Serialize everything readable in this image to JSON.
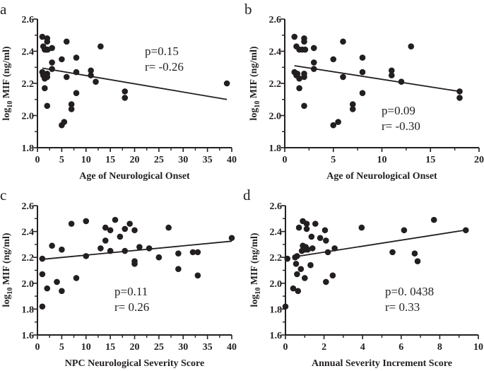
{
  "chart_data": [
    {
      "type": "scatter",
      "panel_label": "a",
      "xlabel": "Age of Neurological Onset",
      "ylabel_prefix": "log",
      "ylabel_sub": "10",
      "ylabel_suffix": " MIF (ng/ml)",
      "xlim": [
        0,
        40
      ],
      "ylim": [
        1.8,
        2.6
      ],
      "xticks": [
        0,
        5,
        10,
        15,
        20,
        25,
        30,
        35,
        40
      ],
      "yticks": [
        1.8,
        2.0,
        2.2,
        2.4,
        2.6
      ],
      "annotation": [
        "p=0.15",
        "r= -0.26"
      ],
      "points": [
        [
          1,
          2.49
        ],
        [
          1.2,
          2.43
        ],
        [
          1.5,
          2.41
        ],
        [
          1.8,
          2.41
        ],
        [
          2,
          2.48
        ],
        [
          2,
          2.46
        ],
        [
          2.1,
          2.41
        ],
        [
          3,
          2.42
        ],
        [
          1,
          2.27
        ],
        [
          1.2,
          2.25
        ],
        [
          1.3,
          2.26
        ],
        [
          1.5,
          2.23
        ],
        [
          2,
          2.26
        ],
        [
          2,
          2.24
        ],
        [
          1.5,
          2.17
        ],
        [
          2,
          2.06
        ],
        [
          3,
          2.33
        ],
        [
          3,
          2.29
        ],
        [
          5,
          2.35
        ],
        [
          6,
          2.46
        ],
        [
          6,
          2.24
        ],
        [
          5,
          1.94
        ],
        [
          5.5,
          1.96
        ],
        [
          7,
          2.07
        ],
        [
          7,
          2.04
        ],
        [
          8,
          2.36
        ],
        [
          8,
          2.27
        ],
        [
          8,
          2.14
        ],
        [
          11,
          2.28
        ],
        [
          11,
          2.25
        ],
        [
          12,
          2.21
        ],
        [
          13,
          2.43
        ],
        [
          18,
          2.15
        ],
        [
          18,
          2.11
        ],
        [
          39,
          2.2
        ]
      ],
      "fit_line": [
        [
          1,
          2.295
        ],
        [
          39,
          2.1
        ]
      ],
      "color": "#231f20"
    },
    {
      "type": "scatter",
      "panel_label": "b",
      "xlabel": "Age of Neurological Onset",
      "ylabel_prefix": "log",
      "ylabel_sub": "10",
      "ylabel_suffix": " MIF (ng/ml)",
      "xlim": [
        0,
        20
      ],
      "ylim": [
        1.8,
        2.6
      ],
      "xticks": [
        0,
        5,
        10,
        15,
        20
      ],
      "yticks": [
        1.8,
        2.0,
        2.2,
        2.4,
        2.6
      ],
      "annotation": [
        "p=0.09",
        "r= -0.30"
      ],
      "points": [
        [
          1,
          2.49
        ],
        [
          1.2,
          2.43
        ],
        [
          1.5,
          2.41
        ],
        [
          1.8,
          2.41
        ],
        [
          2,
          2.48
        ],
        [
          2,
          2.46
        ],
        [
          2.1,
          2.41
        ],
        [
          3,
          2.42
        ],
        [
          1,
          2.27
        ],
        [
          1.2,
          2.25
        ],
        [
          1.3,
          2.26
        ],
        [
          1.5,
          2.23
        ],
        [
          2,
          2.26
        ],
        [
          2,
          2.24
        ],
        [
          1.5,
          2.17
        ],
        [
          2,
          2.06
        ],
        [
          3,
          2.33
        ],
        [
          3,
          2.29
        ],
        [
          5,
          2.35
        ],
        [
          6,
          2.46
        ],
        [
          6,
          2.24
        ],
        [
          5,
          1.94
        ],
        [
          5.5,
          1.96
        ],
        [
          7,
          2.07
        ],
        [
          7,
          2.04
        ],
        [
          8,
          2.36
        ],
        [
          8,
          2.27
        ],
        [
          8,
          2.14
        ],
        [
          11,
          2.28
        ],
        [
          11,
          2.25
        ],
        [
          12,
          2.21
        ],
        [
          13,
          2.43
        ],
        [
          18,
          2.15
        ],
        [
          18,
          2.11
        ]
      ],
      "fit_line": [
        [
          1,
          2.31
        ],
        [
          18,
          2.15
        ]
      ],
      "color": "#231f20"
    },
    {
      "type": "scatter",
      "panel_label": "c",
      "xlabel": "NPC Neurological Severity Score",
      "ylabel_prefix": "log",
      "ylabel_sub": "10",
      "ylabel_suffix": " MIF (ng/ml)",
      "xlim": [
        0,
        40
      ],
      "ylim": [
        1.6,
        2.6
      ],
      "xticks": [
        0,
        5,
        10,
        15,
        20,
        25,
        30,
        35,
        40
      ],
      "yticks": [
        1.6,
        1.8,
        2.0,
        2.2,
        2.4,
        2.6
      ],
      "annotation": [
        "p=0.11",
        "r= 0.26"
      ],
      "points": [
        [
          1,
          2.19
        ],
        [
          1,
          2.07
        ],
        [
          1,
          1.82
        ],
        [
          2,
          1.96
        ],
        [
          3,
          2.29
        ],
        [
          4,
          2.01
        ],
        [
          5,
          2.26
        ],
        [
          5,
          1.94
        ],
        [
          7,
          2.46
        ],
        [
          8,
          2.04
        ],
        [
          10,
          2.48
        ],
        [
          10,
          2.21
        ],
        [
          13,
          2.27
        ],
        [
          14,
          2.43
        ],
        [
          14,
          2.33
        ],
        [
          15,
          2.41
        ],
        [
          15,
          2.25
        ],
        [
          16,
          2.49
        ],
        [
          17,
          2.36
        ],
        [
          18,
          2.42
        ],
        [
          18,
          2.25
        ],
        [
          19,
          2.46
        ],
        [
          20,
          2.41
        ],
        [
          20,
          2.17
        ],
        [
          20,
          2.15
        ],
        [
          21,
          2.28
        ],
        [
          23,
          2.27
        ],
        [
          25,
          2.2
        ],
        [
          27,
          2.43
        ],
        [
          29,
          2.23
        ],
        [
          29,
          2.11
        ],
        [
          32,
          2.24
        ],
        [
          33,
          2.24
        ],
        [
          33,
          2.06
        ],
        [
          40,
          2.35
        ]
      ],
      "fit_line": [
        [
          1,
          2.185
        ],
        [
          40,
          2.325
        ]
      ],
      "color": "#231f20"
    },
    {
      "type": "scatter",
      "panel_label": "d",
      "xlabel": "Annual Severity Increment Score",
      "ylabel_prefix": "log",
      "ylabel_sub": "10",
      "ylabel_suffix": " MIF (ng/ml)",
      "xlim": [
        0,
        10
      ],
      "ylim": [
        1.6,
        2.6
      ],
      "xticks": [
        0,
        2,
        4,
        6,
        8,
        10
      ],
      "yticks": [
        1.6,
        1.8,
        2.0,
        2.2,
        2.4,
        2.6
      ],
      "annotation": [
        "p=0. 0438",
        "r= 0.33"
      ],
      "points": [
        [
          0,
          1.82
        ],
        [
          0.1,
          2.19
        ],
        [
          0.4,
          1.96
        ],
        [
          0.5,
          2.2
        ],
        [
          0.6,
          2.21
        ],
        [
          0.55,
          2.15
        ],
        [
          0.6,
          2.07
        ],
        [
          0.65,
          1.94
        ],
        [
          0.7,
          2.43
        ],
        [
          0.8,
          2.11
        ],
        [
          0.85,
          2.25
        ],
        [
          0.9,
          2.48
        ],
        [
          0.9,
          2.29
        ],
        [
          1,
          2.26
        ],
        [
          1,
          2.04
        ],
        [
          1.05,
          2.28
        ],
        [
          1.1,
          2.46
        ],
        [
          1.1,
          2.42
        ],
        [
          1.15,
          2.26
        ],
        [
          1.3,
          2.14
        ],
        [
          1.35,
          2.36
        ],
        [
          1.4,
          2.27
        ],
        [
          1.55,
          2.46
        ],
        [
          1.8,
          2.35
        ],
        [
          2.05,
          2.41
        ],
        [
          2.1,
          2.33
        ],
        [
          2.1,
          2.01
        ],
        [
          2.2,
          2.24
        ],
        [
          2.45,
          2.06
        ],
        [
          2.55,
          2.27
        ],
        [
          3.95,
          2.43
        ],
        [
          5.55,
          2.24
        ],
        [
          6.15,
          2.41
        ],
        [
          6.7,
          2.23
        ],
        [
          6.85,
          2.17
        ],
        [
          7.7,
          2.49
        ],
        [
          9.35,
          2.41
        ]
      ],
      "fit_line": [
        [
          0.5,
          2.205
        ],
        [
          9.3,
          2.41
        ]
      ],
      "color": "#231f20"
    }
  ]
}
